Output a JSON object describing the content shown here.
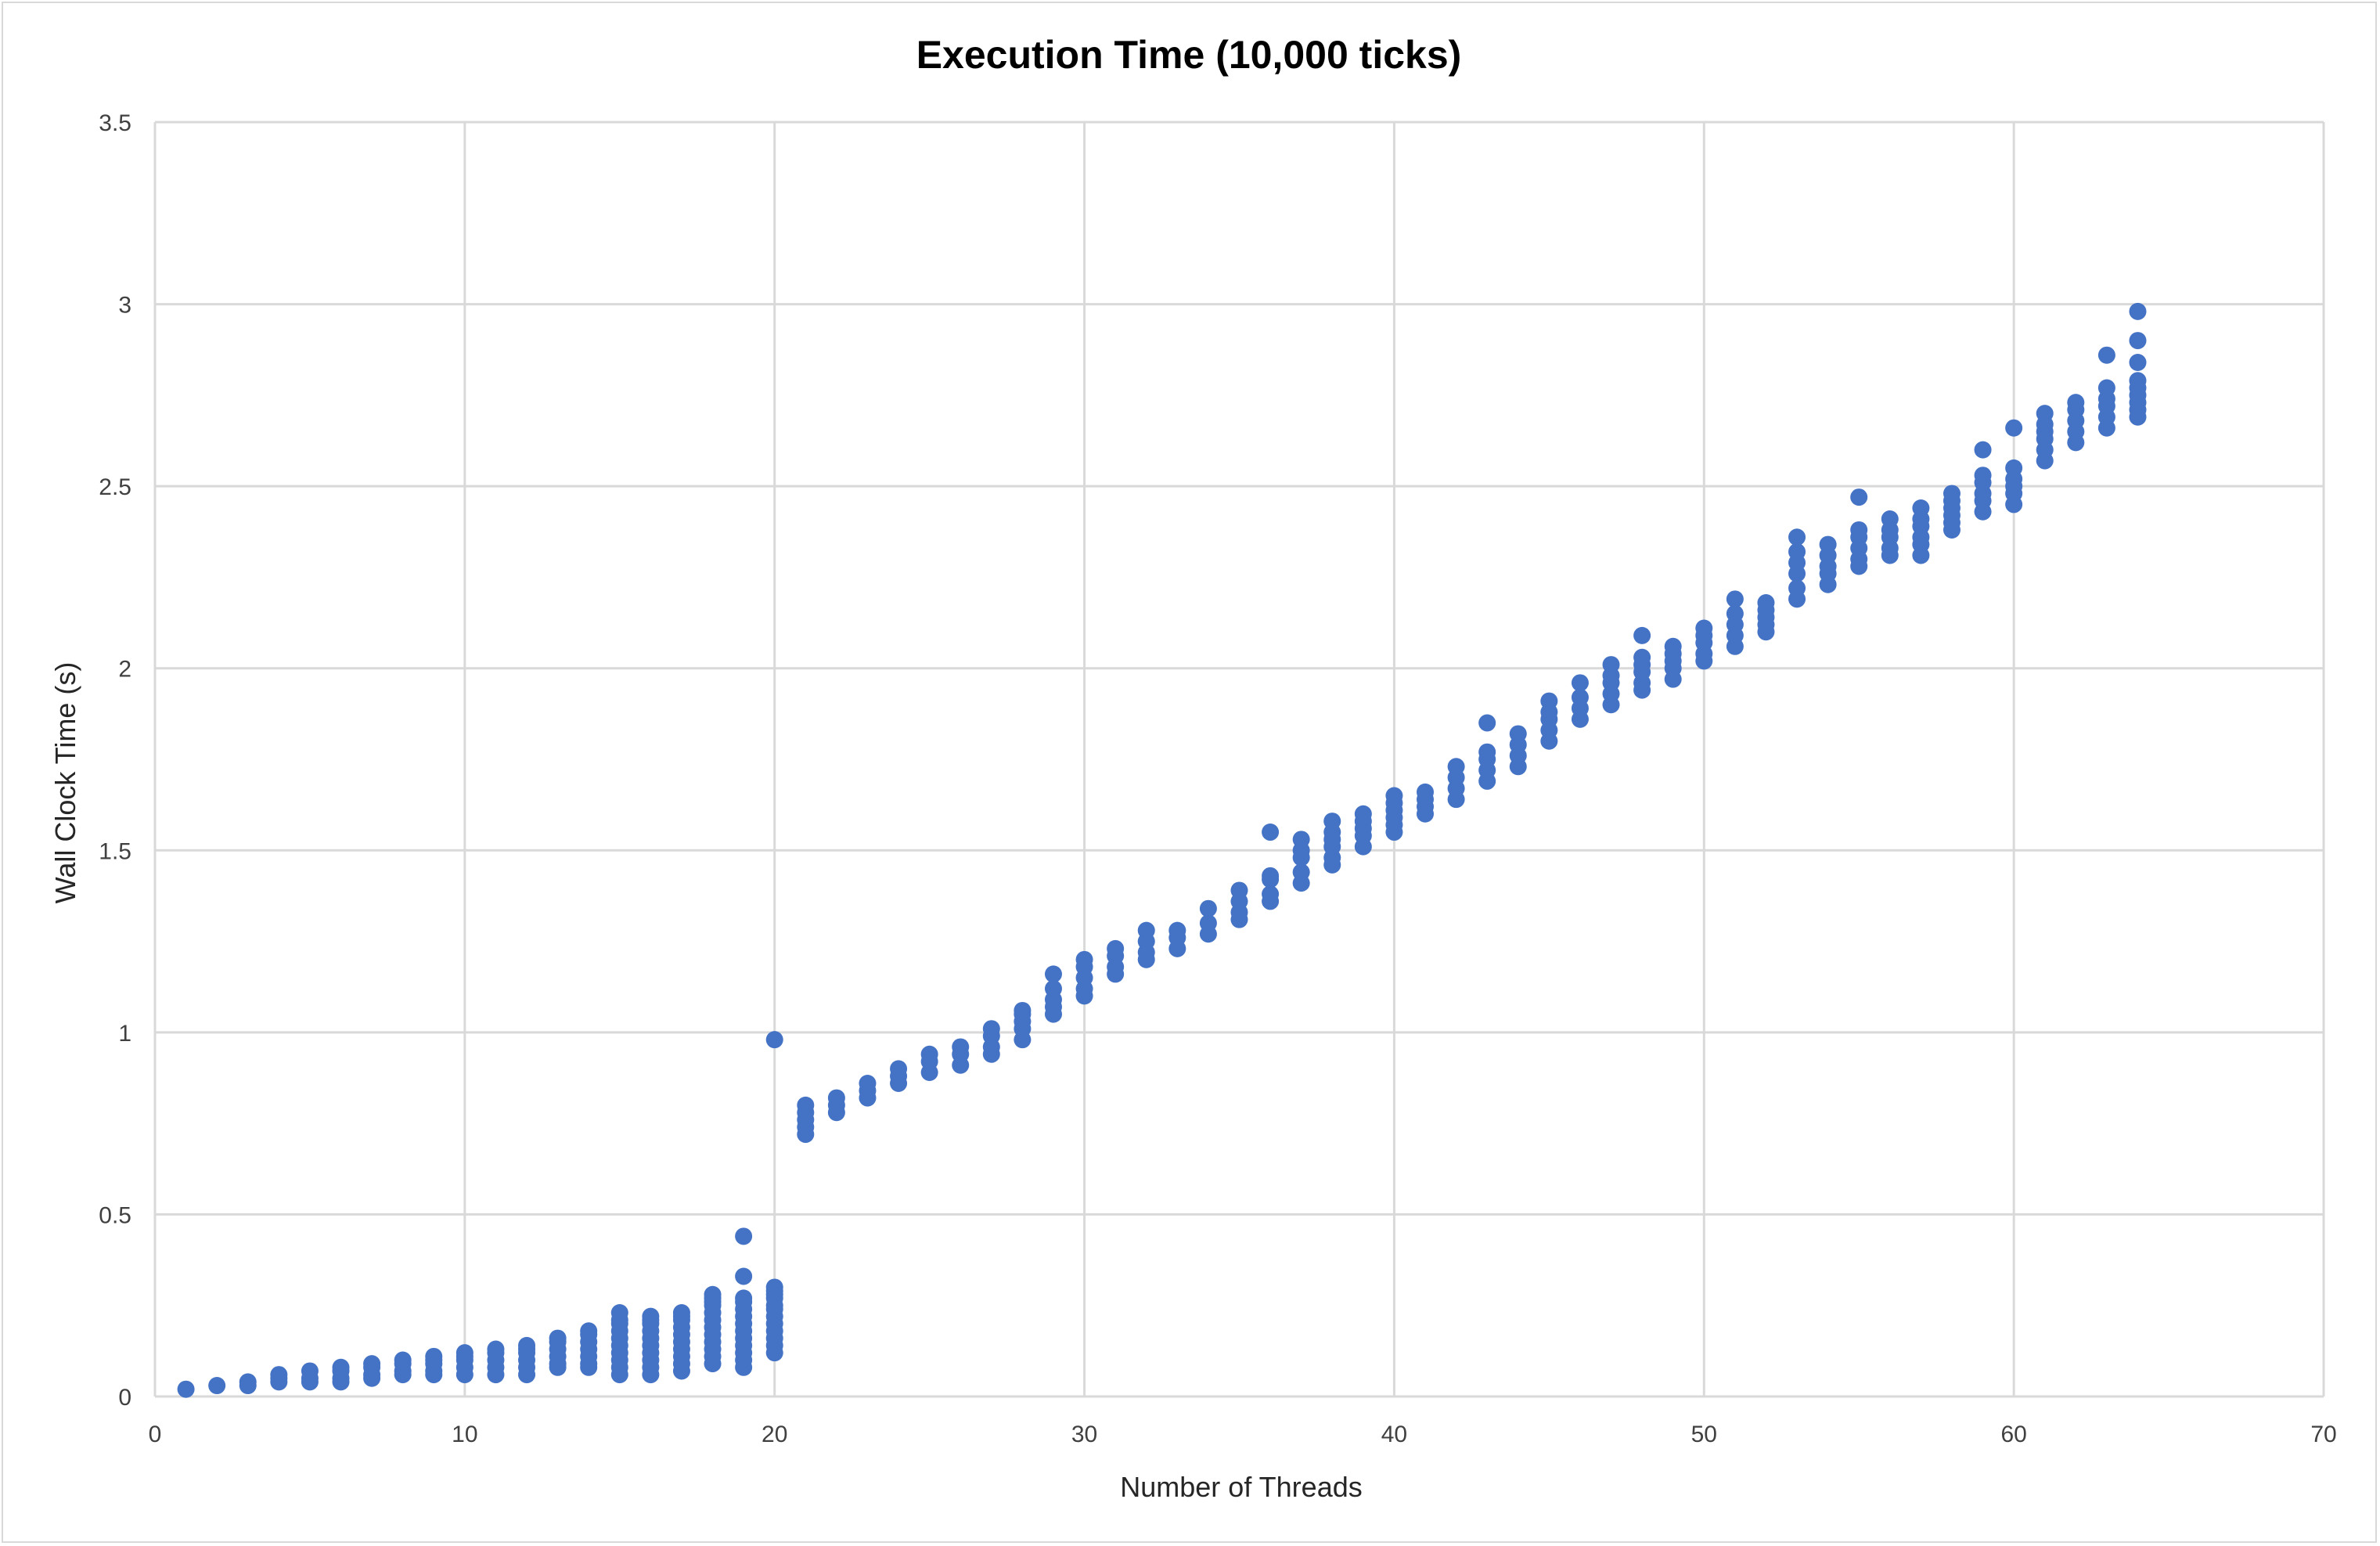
{
  "chart_data": {
    "type": "scatter",
    "title": "Execution Time (10,000 ticks)",
    "xlabel": "Number of Threads",
    "ylabel": "Wall Clock Time (s)",
    "xlim": [
      0,
      70
    ],
    "ylim": [
      0,
      3.5
    ],
    "xticks": [
      "0",
      "10",
      "20",
      "30",
      "40",
      "50",
      "60",
      "70"
    ],
    "yticks": [
      "0",
      "0.5",
      "1",
      "1.5",
      "2",
      "2.5",
      "3",
      "3.5"
    ],
    "grid": true,
    "legend": "none",
    "marker_color": "#4472c4",
    "series": [
      {
        "x": [
          1,
          2,
          3,
          3,
          4,
          4,
          4,
          5,
          5,
          5,
          6,
          6,
          6,
          6,
          7,
          7,
          7,
          7,
          8,
          8,
          8,
          8,
          9,
          9,
          9,
          9,
          9,
          10,
          10,
          10,
          10,
          10,
          11,
          11,
          11,
          11,
          11,
          12,
          12,
          12,
          12,
          12,
          12,
          13,
          13,
          13,
          13,
          13,
          13,
          14,
          14,
          14,
          14,
          14,
          14,
          14,
          15,
          15,
          15,
          15,
          15,
          15,
          15,
          15,
          15,
          15,
          16,
          16,
          16,
          16,
          16,
          16,
          16,
          16,
          16,
          16,
          17,
          17,
          17,
          17,
          17,
          17,
          17,
          17,
          17,
          17,
          18,
          18,
          18,
          18,
          18,
          18,
          18,
          18,
          18,
          18,
          18,
          18,
          19,
          19,
          19,
          19,
          19,
          19,
          19,
          19,
          19,
          19,
          19,
          19,
          19,
          20,
          20,
          20,
          20,
          20,
          20,
          20,
          20,
          20,
          20,
          20,
          20,
          20,
          21,
          21,
          21,
          21,
          21,
          22,
          22,
          22,
          23,
          23,
          23,
          24,
          24,
          24,
          25,
          25,
          25,
          26,
          26,
          26,
          27,
          27,
          27,
          27,
          28,
          28,
          28,
          28,
          28,
          29,
          29,
          29,
          29,
          29,
          30,
          30,
          30,
          30,
          30,
          31,
          31,
          31,
          31,
          32,
          32,
          32,
          32,
          33,
          33,
          33,
          34,
          34,
          34,
          35,
          35,
          35,
          35,
          36,
          36,
          36,
          36,
          36,
          37,
          37,
          37,
          37,
          37,
          38,
          38,
          38,
          38,
          38,
          38,
          39,
          39,
          39,
          39,
          39,
          40,
          40,
          40,
          40,
          40,
          40,
          41,
          41,
          41,
          41,
          42,
          42,
          42,
          42,
          43,
          43,
          43,
          43,
          43,
          44,
          44,
          44,
          44,
          45,
          45,
          45,
          45,
          45,
          46,
          46,
          46,
          46,
          47,
          47,
          47,
          47,
          47,
          48,
          48,
          48,
          48,
          48,
          48,
          49,
          49,
          49,
          49,
          49,
          50,
          50,
          50,
          50,
          50,
          51,
          51,
          51,
          51,
          51,
          52,
          52,
          52,
          52,
          52,
          53,
          53,
          53,
          53,
          53,
          53,
          54,
          54,
          54,
          54,
          54,
          55,
          55,
          55,
          55,
          55,
          55,
          56,
          56,
          56,
          56,
          56,
          57,
          57,
          57,
          57,
          57,
          57,
          58,
          58,
          58,
          58,
          58,
          58,
          59,
          59,
          59,
          59,
          59,
          59,
          60,
          60,
          60,
          60,
          60,
          60,
          61,
          61,
          61,
          61,
          61,
          61,
          62,
          62,
          62,
          62,
          62,
          63,
          63,
          63,
          63,
          63,
          63,
          64,
          64,
          64,
          64,
          64,
          64,
          64,
          64,
          64
        ],
        "y": [
          0.02,
          0.03,
          0.03,
          0.04,
          0.04,
          0.05,
          0.06,
          0.04,
          0.05,
          0.07,
          0.04,
          0.05,
          0.07,
          0.08,
          0.05,
          0.06,
          0.08,
          0.09,
          0.06,
          0.07,
          0.09,
          0.1,
          0.06,
          0.07,
          0.09,
          0.1,
          0.11,
          0.06,
          0.08,
          0.1,
          0.11,
          0.12,
          0.06,
          0.08,
          0.1,
          0.12,
          0.13,
          0.06,
          0.08,
          0.1,
          0.12,
          0.13,
          0.14,
          0.08,
          0.09,
          0.11,
          0.13,
          0.15,
          0.16,
          0.08,
          0.09,
          0.11,
          0.13,
          0.15,
          0.17,
          0.18,
          0.06,
          0.08,
          0.1,
          0.12,
          0.14,
          0.16,
          0.18,
          0.2,
          0.21,
          0.23,
          0.06,
          0.08,
          0.1,
          0.12,
          0.14,
          0.16,
          0.18,
          0.2,
          0.21,
          0.22,
          0.07,
          0.09,
          0.11,
          0.13,
          0.15,
          0.17,
          0.19,
          0.21,
          0.22,
          0.23,
          0.09,
          0.11,
          0.13,
          0.15,
          0.17,
          0.19,
          0.21,
          0.23,
          0.25,
          0.26,
          0.27,
          0.28,
          0.08,
          0.1,
          0.12,
          0.14,
          0.16,
          0.18,
          0.2,
          0.22,
          0.24,
          0.26,
          0.27,
          0.33,
          0.44,
          0.12,
          0.14,
          0.16,
          0.18,
          0.2,
          0.22,
          0.24,
          0.25,
          0.27,
          0.28,
          0.29,
          0.3,
          0.98,
          0.72,
          0.74,
          0.76,
          0.78,
          0.8,
          0.78,
          0.8,
          0.82,
          0.82,
          0.84,
          0.86,
          0.86,
          0.88,
          0.9,
          0.89,
          0.92,
          0.94,
          0.91,
          0.94,
          0.96,
          0.94,
          0.96,
          0.99,
          1.01,
          0.98,
          1.01,
          1.03,
          1.05,
          1.06,
          1.05,
          1.07,
          1.09,
          1.12,
          1.16,
          1.1,
          1.12,
          1.15,
          1.18,
          1.2,
          1.16,
          1.18,
          1.21,
          1.23,
          1.2,
          1.22,
          1.25,
          1.28,
          1.23,
          1.26,
          1.28,
          1.27,
          1.3,
          1.34,
          1.31,
          1.33,
          1.36,
          1.39,
          1.36,
          1.38,
          1.42,
          1.43,
          1.55,
          1.41,
          1.44,
          1.48,
          1.5,
          1.53,
          1.46,
          1.48,
          1.51,
          1.53,
          1.55,
          1.58,
          1.51,
          1.54,
          1.56,
          1.58,
          1.6,
          1.55,
          1.57,
          1.59,
          1.61,
          1.63,
          1.65,
          1.6,
          1.62,
          1.64,
          1.66,
          1.64,
          1.67,
          1.7,
          1.73,
          1.69,
          1.72,
          1.75,
          1.77,
          1.85,
          1.73,
          1.76,
          1.79,
          1.82,
          1.8,
          1.83,
          1.86,
          1.88,
          1.91,
          1.86,
          1.89,
          1.92,
          1.96,
          1.9,
          1.93,
          1.96,
          1.98,
          2.01,
          1.94,
          1.96,
          1.99,
          2.01,
          2.03,
          2.09,
          1.97,
          2.0,
          2.02,
          2.04,
          2.06,
          2.02,
          2.04,
          2.07,
          2.09,
          2.11,
          2.06,
          2.09,
          2.12,
          2.15,
          2.19,
          2.1,
          2.12,
          2.14,
          2.16,
          2.18,
          2.19,
          2.22,
          2.26,
          2.29,
          2.32,
          2.36,
          2.23,
          2.26,
          2.28,
          2.31,
          2.34,
          2.28,
          2.3,
          2.33,
          2.36,
          2.38,
          2.47,
          2.31,
          2.33,
          2.36,
          2.38,
          2.41,
          2.31,
          2.34,
          2.36,
          2.39,
          2.41,
          2.44,
          2.38,
          2.4,
          2.42,
          2.44,
          2.46,
          2.48,
          2.43,
          2.46,
          2.48,
          2.51,
          2.53,
          2.6,
          2.45,
          2.48,
          2.5,
          2.52,
          2.55,
          2.66,
          2.57,
          2.6,
          2.63,
          2.65,
          2.67,
          2.7,
          2.62,
          2.65,
          2.68,
          2.71,
          2.73,
          2.66,
          2.69,
          2.72,
          2.74,
          2.77,
          2.86,
          2.69,
          2.71,
          2.73,
          2.75,
          2.77,
          2.79,
          2.84,
          2.9,
          2.98
        ]
      }
    ]
  }
}
